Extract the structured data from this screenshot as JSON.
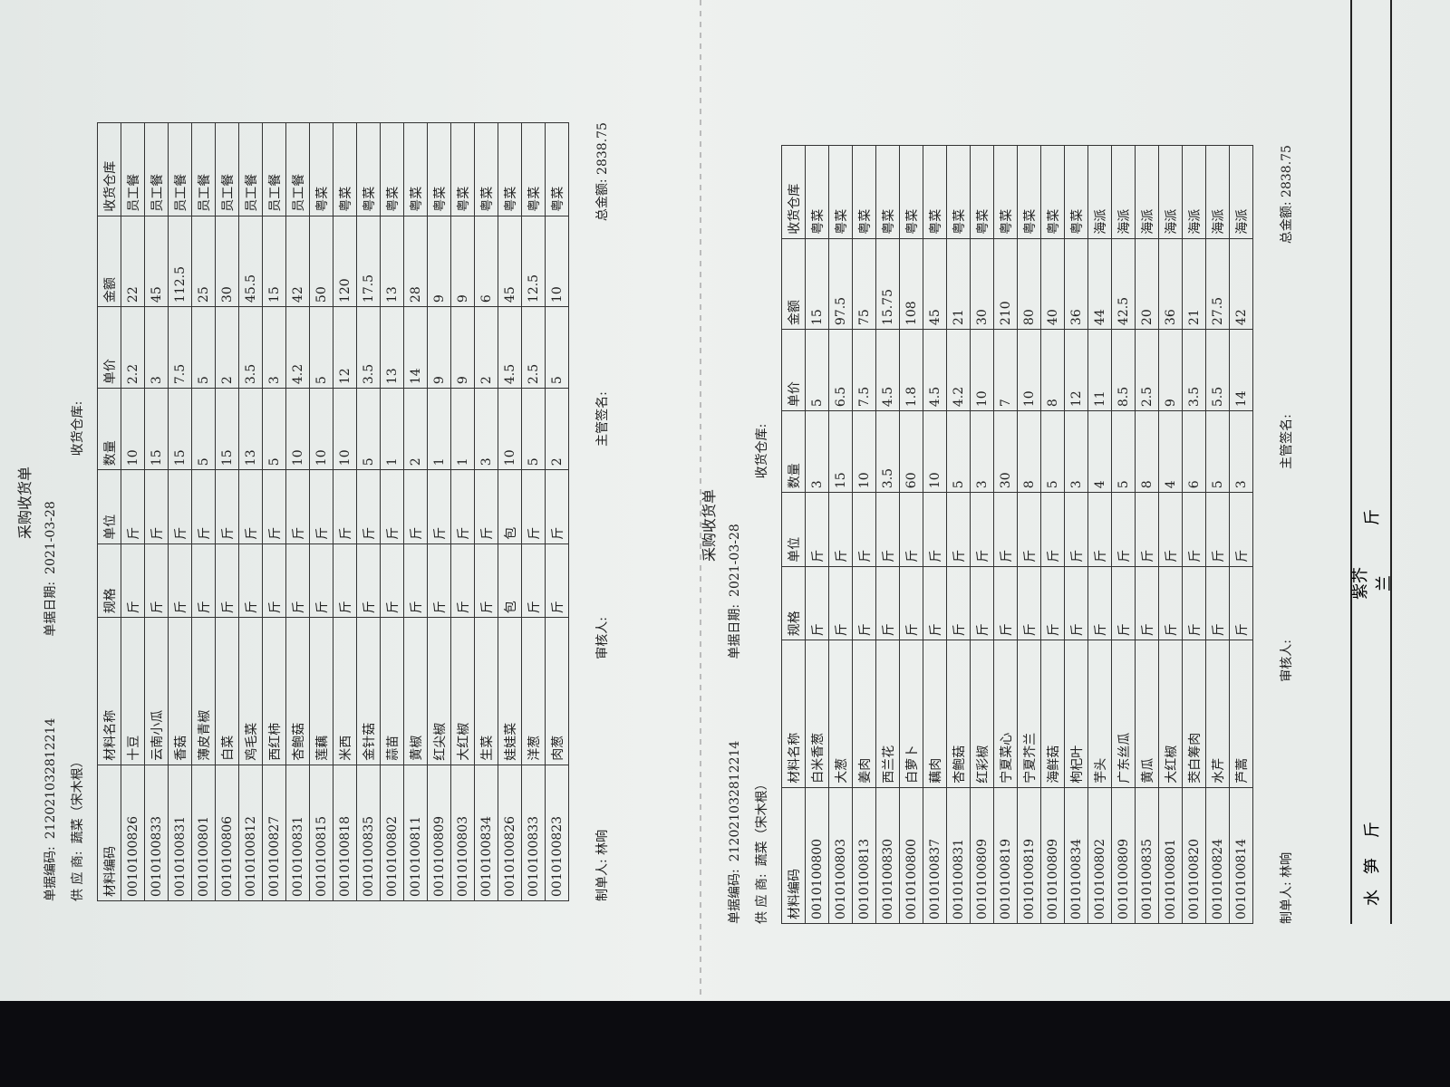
{
  "left": {
    "title": "采购收货单",
    "doc_no_label": "单据编码:",
    "doc_no": "212021032812214",
    "date_label": "单据日期:",
    "date": "2021-03-28",
    "supplier_label": "供 应 商:",
    "supplier": "蔬菜（宋木根）",
    "warehouse_label": "收货仓库:",
    "columns": [
      "材料编码",
      "材料名称",
      "规格",
      "单位",
      "数量",
      "单价",
      "金额",
      "收货仓库"
    ],
    "rows": [
      [
        "0010100826",
        "十豆",
        "斤",
        "斤",
        10,
        2.2,
        22,
        "员工餐"
      ],
      [
        "0010100833",
        "云南小瓜",
        "斤",
        "斤",
        15,
        3,
        45,
        "员工餐"
      ],
      [
        "0010100831",
        "香菇",
        "斤",
        "斤",
        15,
        7.5,
        112.5,
        "员工餐"
      ],
      [
        "0010100801",
        "薄皮青椒",
        "斤",
        "斤",
        5,
        5,
        25,
        "员工餐"
      ],
      [
        "0010100806",
        "白菜",
        "斤",
        "斤",
        15,
        2,
        30,
        "员工餐"
      ],
      [
        "0010100812",
        "鸡毛菜",
        "斤",
        "斤",
        13,
        3.5,
        45.5,
        "员工餐"
      ],
      [
        "0010100827",
        "西红柿",
        "斤",
        "斤",
        5,
        3,
        15,
        "员工餐"
      ],
      [
        "0010100831",
        "杏鲍菇",
        "斤",
        "斤",
        10,
        4.2,
        42,
        "员工餐"
      ],
      [
        "0010100815",
        "莲藕",
        "斤",
        "斤",
        10,
        5,
        50,
        "粤菜"
      ],
      [
        "0010100818",
        "米西",
        "斤",
        "斤",
        10,
        12,
        120,
        "粤菜"
      ],
      [
        "0010100835",
        "金针菇",
        "斤",
        "斤",
        5,
        3.5,
        17.5,
        "粤菜"
      ],
      [
        "0010100802",
        "蒜苗",
        "斤",
        "斤",
        1,
        13,
        13,
        "粤菜"
      ],
      [
        "0010100811",
        "黄椒",
        "斤",
        "斤",
        2,
        14,
        28,
        "粤菜"
      ],
      [
        "0010100809",
        "红尖椒",
        "斤",
        "斤",
        1,
        9,
        9,
        "粤菜"
      ],
      [
        "0010100803",
        "大红椒",
        "斤",
        "斤",
        1,
        9,
        9,
        "粤菜"
      ],
      [
        "0010100834",
        "生菜",
        "斤",
        "斤",
        3,
        2,
        6,
        "粤菜"
      ],
      [
        "0010100826",
        "娃娃菜",
        "包",
        "包",
        10,
        4.5,
        45,
        "粤菜"
      ],
      [
        "0010100833",
        "洋葱",
        "斤",
        "斤",
        5,
        2.5,
        12.5,
        "粤菜"
      ],
      [
        "0010100823",
        "肉葱",
        "斤",
        "斤",
        2,
        5,
        10,
        "粤菜"
      ]
    ],
    "maker_label": "制单人:",
    "maker": "林响",
    "reviewer_label": "审核人:",
    "supervisor_label": "主管签名:",
    "total_label": "总金额:",
    "total": 2838.75
  },
  "right": {
    "title": "采购收货单",
    "doc_no_label": "单据编码:",
    "doc_no": "212021032812214",
    "date_label": "单据日期:",
    "date": "2021-03-28",
    "supplier_label": "供 应 商:",
    "supplier": "蔬菜（宋木根）",
    "warehouse_label": "收货仓库:",
    "columns": [
      "材料编码",
      "材料名称",
      "规格",
      "单位",
      "数量",
      "单价",
      "金额",
      "收货仓库"
    ],
    "rows": [
      [
        "0010100800",
        "白米香葱",
        "斤",
        "斤",
        3,
        5,
        15,
        "粤菜"
      ],
      [
        "0010100803",
        "大葱",
        "斤",
        "斤",
        15,
        6.5,
        97.5,
        "粤菜"
      ],
      [
        "0010100813",
        "姜肉",
        "斤",
        "斤",
        10,
        7.5,
        75,
        "粤菜"
      ],
      [
        "0010100830",
        "西兰花",
        "斤",
        "斤",
        3.5,
        4.5,
        15.75,
        "粤菜"
      ],
      [
        "0010100800",
        "白萝卜",
        "斤",
        "斤",
        60,
        1.8,
        108,
        "粤菜"
      ],
      [
        "0010100837",
        "藕肉",
        "斤",
        "斤",
        10,
        4.5,
        45,
        "粤菜"
      ],
      [
        "0010100831",
        "杏鲍菇",
        "斤",
        "斤",
        5,
        4.2,
        21,
        "粤菜"
      ],
      [
        "0010100809",
        "红彩椒",
        "斤",
        "斤",
        3,
        10,
        30,
        "粤菜"
      ],
      [
        "0010100819",
        "宁夏菜心",
        "斤",
        "斤",
        30,
        7,
        210,
        "粤菜"
      ],
      [
        "0010100819",
        "宁夏芥兰",
        "斤",
        "斤",
        8,
        10,
        80,
        "粤菜"
      ],
      [
        "0010100809",
        "海鲜菇",
        "斤",
        "斤",
        5,
        8,
        40,
        "粤菜"
      ],
      [
        "0010100834",
        "枸杞叶",
        "斤",
        "斤",
        3,
        12,
        36,
        "粤菜"
      ],
      [
        "0010100802",
        "芋头",
        "斤",
        "斤",
        4,
        11,
        44,
        "海派"
      ],
      [
        "0010100809",
        "广东丝瓜",
        "斤",
        "斤",
        5,
        8.5,
        42.5,
        "海派"
      ],
      [
        "0010100835",
        "黄瓜",
        "斤",
        "斤",
        8,
        2.5,
        20,
        "海派"
      ],
      [
        "0010100801",
        "大红椒",
        "斤",
        "斤",
        4,
        9,
        36,
        "海派"
      ],
      [
        "0010100820",
        "茭白筹肉",
        "斤",
        "斤",
        6,
        3.5,
        21,
        "海派"
      ],
      [
        "0010100824",
        "水芹",
        "斤",
        "斤",
        5,
        5.5,
        27.5,
        "海派"
      ],
      [
        "0010100814",
        "芦蒿",
        "斤",
        "斤",
        3,
        14,
        42,
        "海派"
      ]
    ],
    "maker_label": "制单人:",
    "maker": "林响",
    "reviewer_label": "审核人:",
    "supervisor_label": "主管签名:",
    "total_label": "总金额:",
    "total": 2838.75
  },
  "side_strip": {
    "cells": [
      "水",
      "笋",
      "斤",
      "紫芥兰",
      "斤"
    ]
  }
}
